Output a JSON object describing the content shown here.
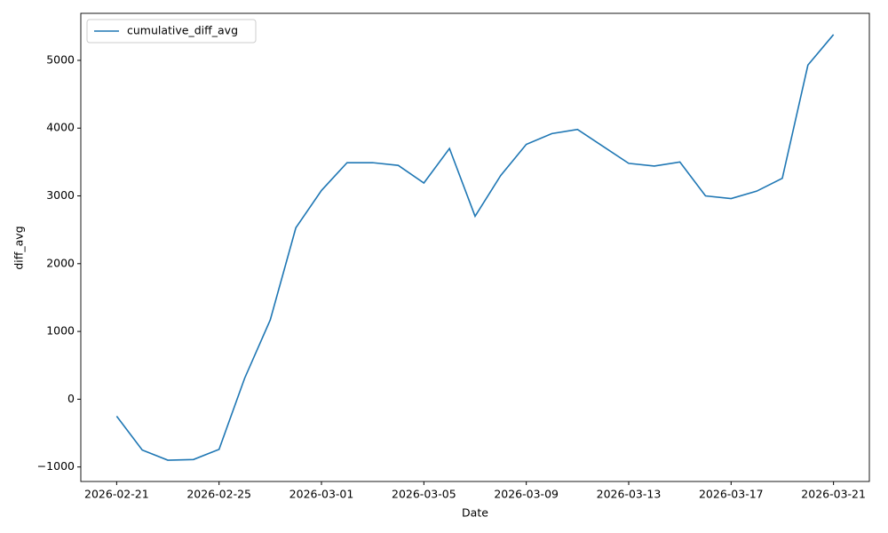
{
  "chart_data": {
    "type": "line",
    "x_label": "Date",
    "y_label": "diff_avg",
    "x": [
      "2026-02-21",
      "2026-02-22",
      "2026-02-23",
      "2026-02-24",
      "2026-02-25",
      "2026-02-26",
      "2026-02-27",
      "2026-02-28",
      "2026-03-01",
      "2026-03-02",
      "2026-03-03",
      "2026-03-04",
      "2026-03-05",
      "2026-03-06",
      "2026-03-07",
      "2026-03-08",
      "2026-03-09",
      "2026-03-10",
      "2026-03-11",
      "2026-03-12",
      "2026-03-13",
      "2026-03-14",
      "2026-03-15",
      "2026-03-16",
      "2026-03-17",
      "2026-03-18",
      "2026-03-19",
      "2026-03-20",
      "2026-03-21"
    ],
    "series": [
      {
        "name": "cumulative_diff_avg",
        "color": "#1f77b4",
        "values": [
          -250,
          -750,
          -900,
          -890,
          -740,
          310,
          1170,
          2530,
          3080,
          3490,
          3490,
          3450,
          3190,
          3700,
          2700,
          3300,
          3760,
          3920,
          3980,
          3730,
          3480,
          3440,
          3500,
          3000,
          2960,
          3070,
          3260,
          4930,
          5380
        ]
      }
    ],
    "xlim": [
      "2026-02-19T14:24",
      "2026-03-22T09:36"
    ],
    "xticks": [
      "2026-02-21",
      "2026-02-25",
      "2026-03-01",
      "2026-03-05",
      "2026-03-09",
      "2026-03-13",
      "2026-03-17",
      "2026-03-21"
    ],
    "ylim": [
      -1214,
      5694
    ],
    "yticks": [
      {
        "value": -1000,
        "label": "−1000"
      },
      0,
      1000,
      2000,
      3000,
      4000,
      5000
    ],
    "legend": "upper left",
    "grid": false
  }
}
